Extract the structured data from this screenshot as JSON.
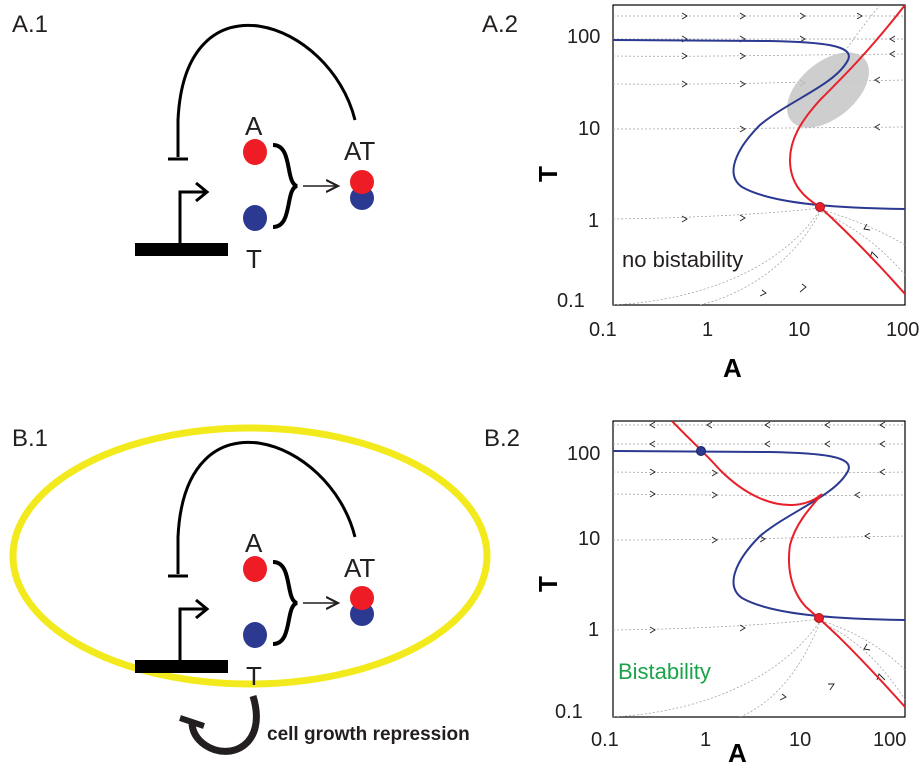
{
  "colors": {
    "species_A": "#ee1c25",
    "species_T": "#2b3990",
    "nullcline_T": "#2b3990",
    "nullcline_A": "#e8202a",
    "cell_membrane": "#f3ea1d",
    "bistability_label": "#1aa34a",
    "ellipse": "#c9c9c9"
  },
  "panels": {
    "a1": {
      "label": "A.1",
      "species_a": "A",
      "species_t": "T",
      "complex": "AT"
    },
    "a2": {
      "label": "A.2",
      "annotation": "no bistability"
    },
    "b1": {
      "label": "B.1",
      "species_a": "A",
      "species_t": "T",
      "complex": "AT",
      "growth_label": "cell growth repression"
    },
    "b2": {
      "label": "B.2",
      "annotation": "Bistability"
    }
  },
  "axes": {
    "xlabel": "A",
    "ylabel": "T",
    "scale": "log",
    "xlim": [
      0.1,
      100
    ],
    "ylim": [
      0.1,
      200
    ],
    "x_ticks": [
      "0.1",
      "1",
      "10",
      "100"
    ],
    "y_ticks": [
      "0.1",
      "1",
      "10",
      "100"
    ]
  },
  "chart_data": [
    {
      "type": "line",
      "panel": "A.2",
      "x_scale": "log",
      "y_scale": "log",
      "xlabel": "A",
      "ylabel": "T",
      "xlim": [
        0.1,
        100
      ],
      "ylim": [
        0.1,
        200
      ],
      "series": [
        {
          "color": "#2b3990",
          "points": [
            [
              0.1,
              95
            ],
            [
              5,
              93
            ],
            [
              20,
              88
            ],
            [
              30,
              80
            ],
            [
              30,
              70
            ],
            [
              20,
              45
            ],
            [
              10,
              20
            ],
            [
              5,
              10
            ],
            [
              3,
              6
            ],
            [
              2.3,
              3.5
            ],
            [
              2.4,
              2.5
            ],
            [
              4,
              1.8
            ],
            [
              10,
              1.5
            ],
            [
              20,
              1.35
            ],
            [
              100,
              1.3
            ]
          ]
        },
        {
          "color": "#e8202a",
          "points": [
            [
              100,
              200
            ],
            [
              40,
              60
            ],
            [
              20,
              30
            ],
            [
              10,
              12
            ],
            [
              8,
              6
            ],
            [
              9,
              3
            ],
            [
              13,
              1.7
            ],
            [
              15,
              1.35
            ],
            [
              22,
              0.9
            ],
            [
              50,
              0.35
            ],
            [
              100,
              0.14
            ]
          ]
        }
      ],
      "fixed_points": [
        {
          "x": 15,
          "y": 1.35,
          "color": "#e8202a",
          "stability": "stable"
        }
      ],
      "annotation": "no bistability"
    },
    {
      "type": "line",
      "panel": "B.2",
      "x_scale": "log",
      "y_scale": "log",
      "xlabel": "A",
      "ylabel": "T",
      "xlim": [
        0.1,
        100
      ],
      "ylim": [
        0.1,
        200
      ],
      "series": [
        {
          "color": "#2b3990",
          "points": [
            [
              0.1,
              95
            ],
            [
              5,
              93
            ],
            [
              20,
              88
            ],
            [
              30,
              80
            ],
            [
              30,
              70
            ],
            [
              20,
              45
            ],
            [
              10,
              20
            ],
            [
              5,
              10
            ],
            [
              3,
              6
            ],
            [
              2.3,
              3.5
            ],
            [
              2.4,
              2.5
            ],
            [
              4,
              1.8
            ],
            [
              10,
              1.5
            ],
            [
              20,
              1.35
            ],
            [
              100,
              1.3
            ]
          ]
        },
        {
          "color": "#e8202a",
          "points": [
            [
              0.4,
              200
            ],
            [
              0.85,
              95
            ],
            [
              2,
              50
            ],
            [
              5,
              27
            ],
            [
              8,
              25
            ],
            [
              15,
              28
            ],
            [
              22,
              32
            ],
            [
              13,
              15
            ],
            [
              8,
              7
            ],
            [
              9,
              3
            ],
            [
              13,
              1.7
            ],
            [
              15,
              1.35
            ],
            [
              22,
              0.9
            ],
            [
              50,
              0.35
            ],
            [
              100,
              0.14
            ]
          ]
        }
      ],
      "fixed_points": [
        {
          "x": 0.85,
          "y": 95,
          "color": "#2b3990",
          "stability": "stable"
        },
        {
          "x": 15,
          "y": 1.35,
          "color": "#e8202a",
          "stability": "stable"
        }
      ],
      "annotation": "Bistability"
    }
  ]
}
